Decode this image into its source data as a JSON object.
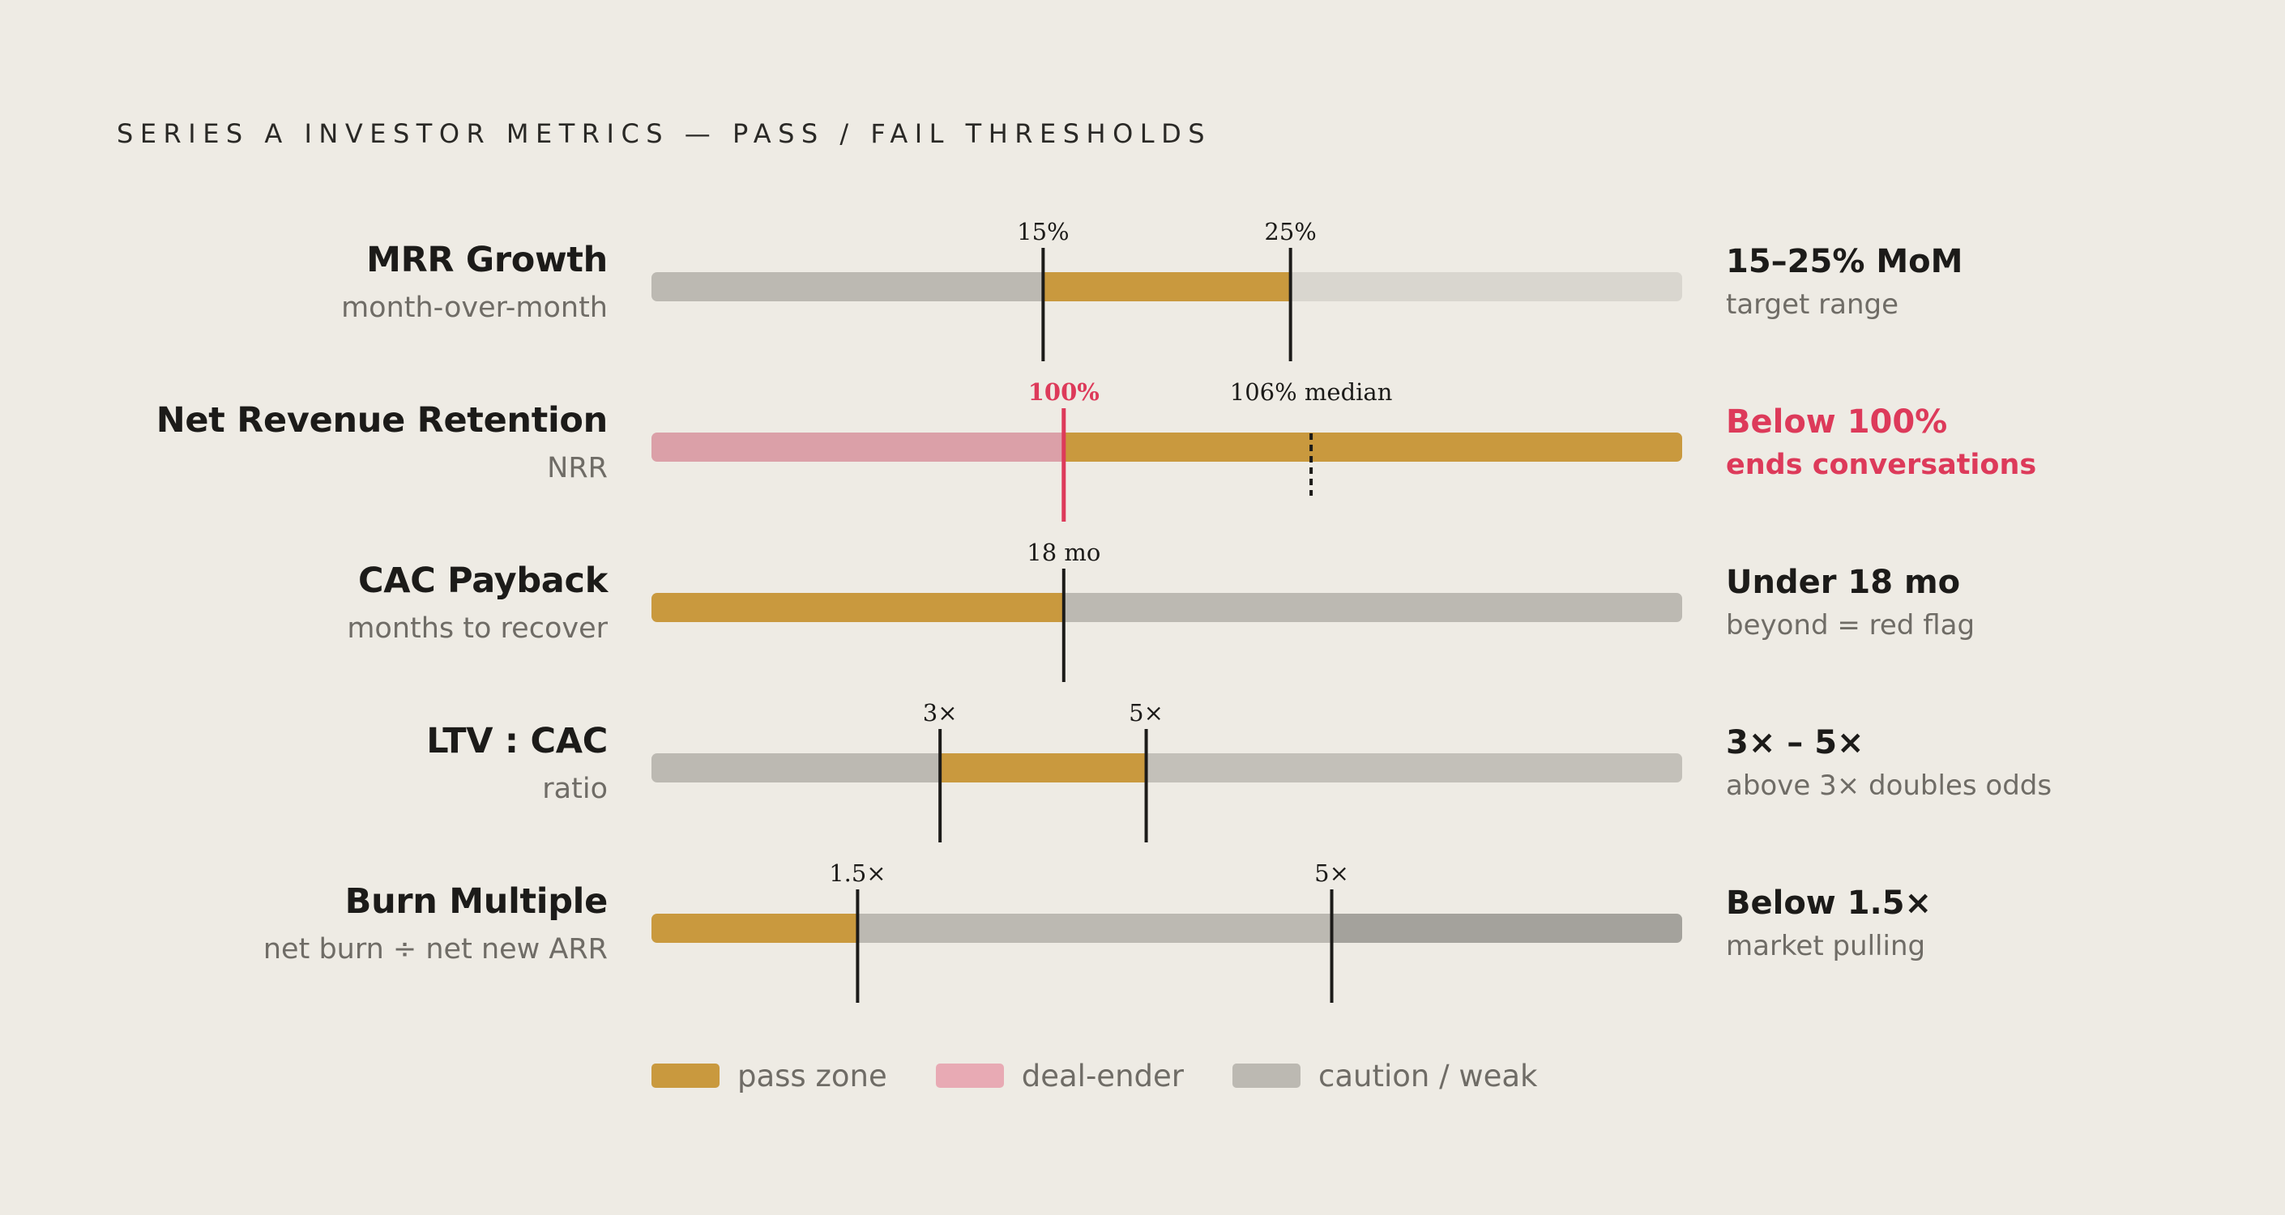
{
  "title": "SERIES A INVESTOR METRICS — PASS / FAIL THRESHOLDS",
  "colors": {
    "pass": "#c9993e",
    "dealender": "#dba0a8",
    "caution": "#bcb9b2",
    "caution_light": "#d9d6cf",
    "caution_mid": "#c3c0b9",
    "caution_dark": "#a4a29c",
    "marker": "#1c1b19",
    "alert": "#dd3a5a",
    "legend_dealender": "#e8aab4"
  },
  "chart_data": {
    "type": "threshold-bars",
    "title": "SERIES A INVESTOR METRICS — PASS / FAIL THRESHOLDS",
    "legend": [
      {
        "label": "pass zone",
        "color": "#c9993e"
      },
      {
        "label": "deal-ender",
        "color": "#e8aab4"
      },
      {
        "label": "caution / weak",
        "color": "#bcb9b2"
      }
    ],
    "metrics": [
      {
        "name": "MRR Growth",
        "subtitle": "month-over-month",
        "summary": "15–25% MoM",
        "summary_sub": "target range",
        "alert": false,
        "scale": [
          0,
          60
        ],
        "segments": [
          {
            "from": 0,
            "to": 22.8,
            "zone": "caution"
          },
          {
            "from": 22.8,
            "to": 37.2,
            "zone": "pass"
          },
          {
            "from": 37.2,
            "to": 60,
            "zone": "caution_light"
          }
        ],
        "markers": [
          {
            "value": 22.8,
            "label": "15%",
            "style": "solid"
          },
          {
            "value": 37.2,
            "label": "25%",
            "style": "solid"
          }
        ]
      },
      {
        "name": "Net Revenue Retention",
        "subtitle": "NRR",
        "summary": "Below 100%",
        "summary_sub": "ends conversations",
        "alert": true,
        "scale": [
          0,
          60
        ],
        "segments": [
          {
            "from": 0,
            "to": 24,
            "zone": "dealender"
          },
          {
            "from": 24,
            "to": 60,
            "zone": "pass"
          }
        ],
        "markers": [
          {
            "value": 24,
            "label": "100%",
            "style": "alert"
          },
          {
            "value": 38.4,
            "label": "106% median",
            "style": "dashed"
          }
        ]
      },
      {
        "name": "CAC Payback",
        "subtitle": "months to recover",
        "summary": "Under 18 mo",
        "summary_sub": "beyond = red flag",
        "alert": false,
        "scale": [
          0,
          60
        ],
        "segments": [
          {
            "from": 0,
            "to": 24,
            "zone": "pass"
          },
          {
            "from": 24,
            "to": 60,
            "zone": "caution"
          }
        ],
        "markers": [
          {
            "value": 24,
            "label": "18 mo",
            "style": "solid"
          }
        ]
      },
      {
        "name": "LTV : CAC",
        "subtitle": "ratio",
        "summary": "3× – 5×",
        "summary_sub": "above 3× doubles odds",
        "alert": false,
        "scale": [
          0,
          60
        ],
        "segments": [
          {
            "from": 0,
            "to": 16.8,
            "zone": "caution"
          },
          {
            "from": 16.8,
            "to": 28.8,
            "zone": "pass"
          },
          {
            "from": 28.8,
            "to": 60,
            "zone": "caution_mid"
          }
        ],
        "markers": [
          {
            "value": 16.8,
            "label": "3×",
            "style": "solid"
          },
          {
            "value": 28.8,
            "label": "5×",
            "style": "solid"
          }
        ]
      },
      {
        "name": "Burn Multiple",
        "subtitle": "net burn ÷ net new ARR",
        "summary": "Below 1.5×",
        "summary_sub": "market pulling",
        "alert": false,
        "scale": [
          0,
          60
        ],
        "segments": [
          {
            "from": 0,
            "to": 12,
            "zone": "pass"
          },
          {
            "from": 12,
            "to": 39.6,
            "zone": "caution"
          },
          {
            "from": 39.6,
            "to": 60,
            "zone": "caution_dark"
          }
        ],
        "markers": [
          {
            "value": 12,
            "label": "1.5×",
            "style": "solid"
          },
          {
            "value": 39.6,
            "label": "5×",
            "style": "solid"
          }
        ]
      }
    ]
  }
}
